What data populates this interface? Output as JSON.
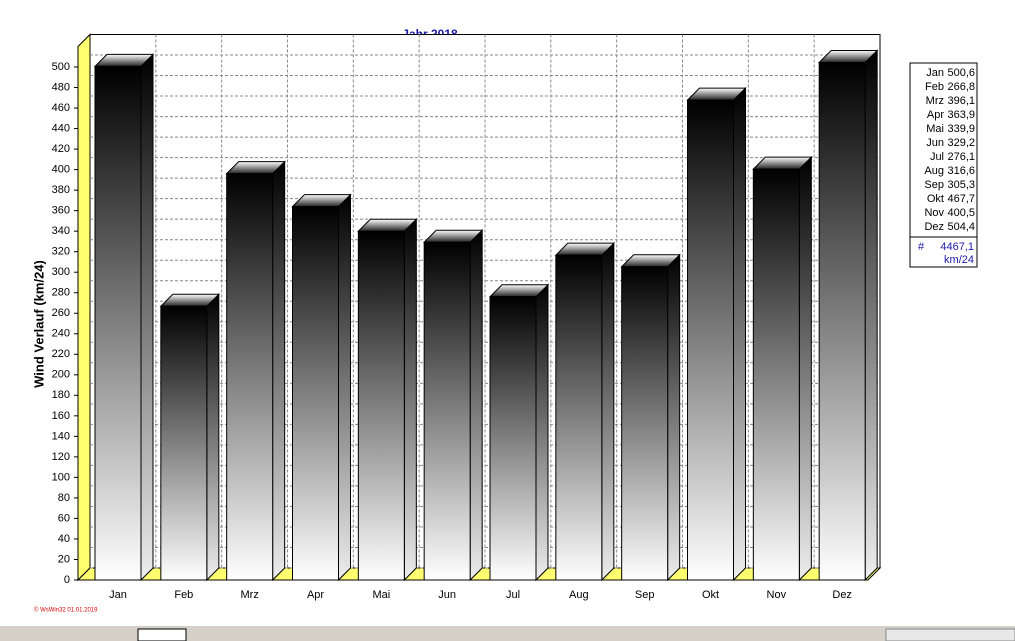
{
  "chart_data": {
    "type": "bar3d",
    "title": "Jahr  2018",
    "y_label": "Wind Verlauf  (km/24)",
    "categories": [
      "Jan",
      "Feb",
      "Mrz",
      "Apr",
      "Mai",
      "Jun",
      "Jul",
      "Aug",
      "Sep",
      "Okt",
      "Nov",
      "Dez"
    ],
    "values": [
      500.6,
      266.8,
      396.1,
      363.9,
      339.9,
      329.2,
      276.1,
      316.6,
      305.3,
      467.7,
      400.5,
      504.4
    ],
    "value_labels": [
      "500,6",
      "266,8",
      "396,1",
      "363,9",
      "339,9",
      "329,2",
      "276,1",
      "316,6",
      "305,3",
      "467,7",
      "400,5",
      "504,4"
    ],
    "ylim": [
      0,
      520
    ],
    "yticks": [
      0,
      20,
      40,
      60,
      80,
      100,
      120,
      140,
      160,
      180,
      200,
      220,
      240,
      260,
      280,
      300,
      320,
      340,
      360,
      380,
      400,
      420,
      440,
      460,
      480,
      500
    ],
    "grid": true,
    "legend": {
      "symbol": "#",
      "total": "4467,1",
      "unit": "km/24"
    },
    "footer": "© WsWin32  01.01.2019"
  }
}
